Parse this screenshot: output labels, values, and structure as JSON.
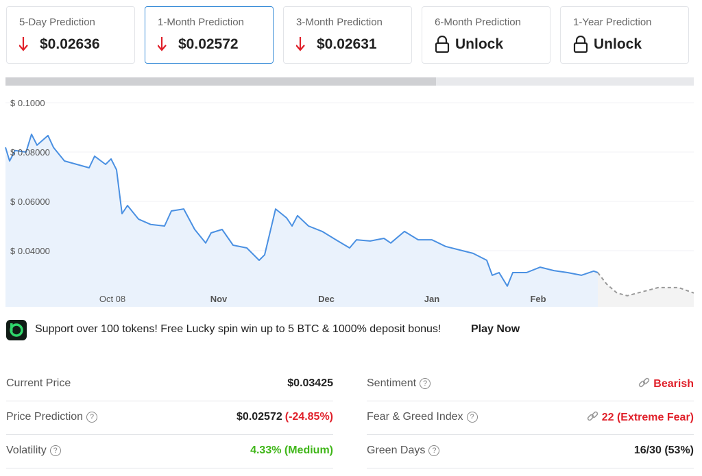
{
  "cards": [
    {
      "label": "5-Day Prediction",
      "value": "$0.02636",
      "icon": "down"
    },
    {
      "label": "1-Month Prediction",
      "value": "$0.02572",
      "icon": "down",
      "selected": true
    },
    {
      "label": "3-Month Prediction",
      "value": "$0.02631",
      "icon": "down"
    },
    {
      "label": "6-Month Prediction",
      "value": "Unlock",
      "icon": "lock"
    },
    {
      "label": "1-Year Prediction",
      "value": "Unlock",
      "icon": "lock"
    }
  ],
  "chart_data": {
    "type": "line",
    "series": [
      {
        "color": "#4a90e2",
        "fill": "#eaf2fc",
        "x": [
          0,
          1.2,
          2.8,
          6,
          7.6,
          9.2,
          12.4,
          14,
          17.2,
          20.8,
          24.4,
          26,
          29.2,
          30.8,
          32.4,
          34,
          35.6,
          38.8,
          42.4,
          46.4,
          48.4,
          52,
          55.2,
          58.4,
          60,
          63.2,
          66.4,
          70.4,
          74,
          75.6,
          78.8,
          82,
          83.6,
          85.2,
          88.4,
          92.4,
          96.4,
          100.4,
          102.4,
          106.4,
          110.4,
          112.4,
          116.4,
          120.4,
          124.4,
          128.4,
          132.4,
          136.4,
          140.4,
          142,
          144,
          146.4,
          148,
          152,
          156,
          160,
          164,
          168,
          171.6,
          172.8
        ],
        "values": [
          0.0819,
          0.0764,
          0.0806,
          0.08,
          0.0872,
          0.0828,
          0.0867,
          0.0819,
          0.0764,
          0.075,
          0.0736,
          0.0783,
          0.075,
          0.0772,
          0.0728,
          0.055,
          0.0583,
          0.0528,
          0.0506,
          0.05,
          0.0561,
          0.0569,
          0.0486,
          0.0431,
          0.0472,
          0.0486,
          0.0422,
          0.0411,
          0.0361,
          0.0383,
          0.0569,
          0.0533,
          0.05,
          0.0542,
          0.05,
          0.0478,
          0.0444,
          0.0411,
          0.0444,
          0.0439,
          0.045,
          0.0431,
          0.0478,
          0.0444,
          0.0444,
          0.0417,
          0.0403,
          0.0389,
          0.0361,
          0.03,
          0.0311,
          0.0256,
          0.0311,
          0.0311,
          0.0333,
          0.0319,
          0.0311,
          0.03,
          0.0317,
          0.0311
        ]
      },
      {
        "color": "#999999",
        "fill": "#f3f3f3",
        "dashed": true,
        "x": [
          172.8,
          175.4,
          178.4,
          181.4,
          184.4,
          187.4,
          190.4,
          196.4,
          200.8
        ],
        "values": [
          0.0311,
          0.0264,
          0.0228,
          0.0217,
          0.0228,
          0.0239,
          0.025,
          0.025,
          0.0228
        ]
      }
    ],
    "xlim": [
      0,
      200.8
    ],
    "xticks": [
      {
        "value": 31.2,
        "label": "Oct 08"
      },
      {
        "value": 62.2,
        "label": "Nov"
      },
      {
        "value": 93.6,
        "label": "Dec"
      },
      {
        "value": 124.4,
        "label": "Jan"
      },
      {
        "value": 155.4,
        "label": "Feb"
      }
    ],
    "ylim": [
      0.0172,
      0.1064
    ],
    "yticks": [
      {
        "value": 0.1,
        "label": "$ 0.1000"
      },
      {
        "value": 0.08,
        "label": "$ 0.08000"
      },
      {
        "value": 0.06,
        "label": "$ 0.06000"
      },
      {
        "value": 0.04,
        "label": "$ 0.04000"
      }
    ],
    "grid": true
  },
  "banner": {
    "text": "Support over 100 tokens! Free Lucky spin win up to 5 BTC & 1000% deposit bonus!",
    "link": "Play Now"
  },
  "stats": {
    "left": [
      {
        "label": "Current Price",
        "value": "$0.03425",
        "color": "#222222"
      },
      {
        "label": "Price Prediction",
        "value": "$0.02572",
        "change": "(-24.85%)",
        "color": "#222222",
        "help": true
      },
      {
        "label": "Volatility",
        "value": "4.33% (Medium)",
        "color": "#3fb618",
        "help": true
      }
    ],
    "right": [
      {
        "label": "Sentiment",
        "value": "Bearish",
        "color": "#e0202a",
        "help": true,
        "linkicon": true
      },
      {
        "label": "Fear & Greed Index",
        "value": "22 (Extreme Fear)",
        "color": "#e0202a",
        "help": true,
        "linkicon": true
      },
      {
        "label": "Green Days",
        "value": "16/30 (53%)",
        "color": "#222222",
        "help": true
      }
    ]
  }
}
